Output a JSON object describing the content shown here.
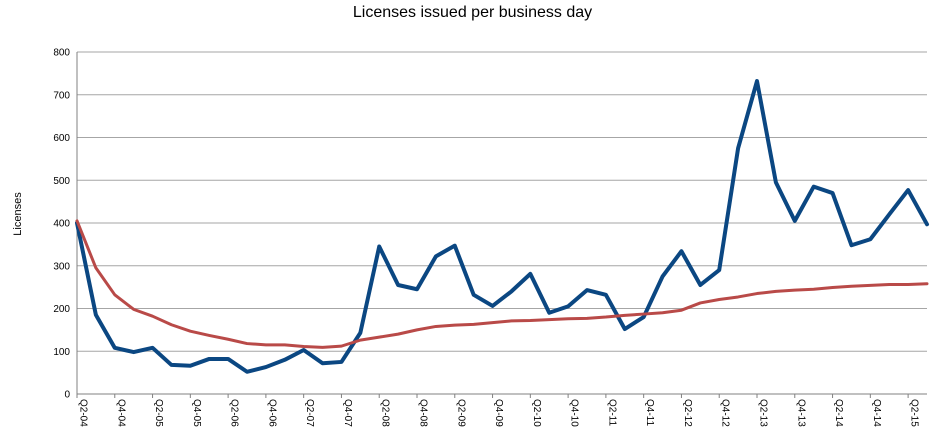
{
  "chart_data": {
    "type": "line",
    "title": "Licenses issued per business day",
    "xlabel": "",
    "ylabel": "Licenses",
    "ylim": [
      0,
      800
    ],
    "yticks": [
      0,
      100,
      200,
      300,
      400,
      500,
      600,
      700,
      800
    ],
    "grid": true,
    "legend": "none",
    "x": [
      "Q2-04",
      "Q3-04",
      "Q4-04",
      "Q1-05",
      "Q2-05",
      "Q3-05",
      "Q4-05",
      "Q1-06",
      "Q2-06",
      "Q3-06",
      "Q4-06",
      "Q1-07",
      "Q2-07",
      "Q3-07",
      "Q4-07",
      "Q1-08",
      "Q2-08",
      "Q3-08",
      "Q4-08",
      "Q1-09",
      "Q2-09",
      "Q3-09",
      "Q4-09",
      "Q1-10",
      "Q2-10",
      "Q3-10",
      "Q4-10",
      "Q1-11",
      "Q2-11",
      "Q3-11",
      "Q4-11",
      "Q1-12",
      "Q2-12",
      "Q3-12",
      "Q4-12",
      "Q1-13",
      "Q2-13",
      "Q3-13",
      "Q4-13",
      "Q1-14",
      "Q2-14",
      "Q3-14",
      "Q4-14",
      "Q1-15",
      "Q2-15",
      "Q3-15"
    ],
    "xtick_labels": [
      "Q2-04",
      "Q4-04",
      "Q2-05",
      "Q4-05",
      "Q2-06",
      "Q4-06",
      "Q2-07",
      "Q4-07",
      "Q2-08",
      "Q4-08",
      "Q2-09",
      "Q4-09",
      "Q2-10",
      "Q4-10",
      "Q2-11",
      "Q4-11",
      "Q2-12",
      "Q4-12",
      "Q2-13",
      "Q4-13",
      "Q2-14",
      "Q4-14",
      "Q2-15"
    ],
    "series": [
      {
        "color": "#0b4782",
        "values": [
          400,
          185,
          108,
          98,
          108,
          68,
          66,
          82,
          82,
          52,
          63,
          80,
          103,
          72,
          75,
          143,
          345,
          255,
          245,
          322,
          347,
          232,
          206,
          240,
          281,
          190,
          205,
          243,
          232,
          152,
          180,
          275,
          334,
          255,
          290,
          575,
          732,
          495,
          405,
          485,
          470,
          348,
          362,
          420,
          477,
          397
        ]
      },
      {
        "color": "#b94a48",
        "values": [
          405,
          295,
          232,
          198,
          182,
          162,
          147,
          137,
          128,
          118,
          115,
          115,
          111,
          109,
          112,
          126,
          133,
          140,
          150,
          158,
          161,
          163,
          167,
          171,
          172,
          174,
          176,
          177,
          180,
          184,
          187,
          190,
          196,
          213,
          221,
          227,
          235,
          240,
          243,
          245,
          249,
          252,
          254,
          256,
          256,
          258
        ]
      }
    ]
  }
}
